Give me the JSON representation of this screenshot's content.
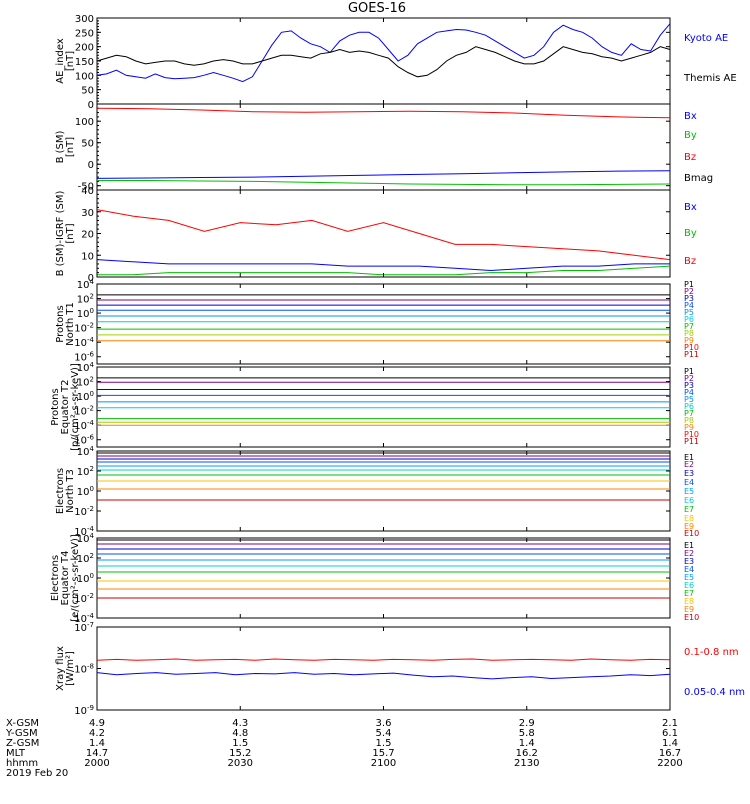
{
  "title": "GOES-16",
  "chart_data": [
    {
      "type": "line",
      "ylabel": "AE_index\n[nT]",
      "ylim": [
        0,
        300
      ],
      "yticks": [
        "0",
        "50",
        "100",
        "150",
        "200",
        "250",
        "300"
      ],
      "log": false,
      "series": [
        {
          "name": "Kyoto AE",
          "color": "#0000ff",
          "y": [
            100,
            105,
            118,
            100,
            95,
            90,
            105,
            92,
            88,
            90,
            92,
            100,
            110,
            100,
            90,
            78,
            95,
            150,
            205,
            250,
            255,
            230,
            210,
            200,
            180,
            220,
            240,
            250,
            250,
            230,
            190,
            150,
            170,
            210,
            230,
            250,
            255,
            260,
            258,
            250,
            240,
            220,
            200,
            180,
            160,
            170,
            200,
            250,
            275,
            260,
            250,
            230,
            200,
            180,
            170,
            210,
            190,
            185,
            240,
            280
          ]
        },
        {
          "name": "Themis AE",
          "color": "#000000",
          "y": [
            150,
            160,
            170,
            165,
            150,
            140,
            145,
            150,
            150,
            140,
            135,
            140,
            150,
            155,
            150,
            140,
            140,
            150,
            160,
            170,
            170,
            165,
            160,
            175,
            180,
            190,
            180,
            185,
            180,
            170,
            160,
            130,
            110,
            95,
            100,
            120,
            150,
            170,
            180,
            200,
            190,
            180,
            165,
            150,
            140,
            140,
            150,
            175,
            200,
            190,
            180,
            175,
            165,
            160,
            150,
            160,
            170,
            180,
            200,
            190
          ]
        }
      ]
    },
    {
      "type": "line",
      "ylabel": "B (SM)\n[nT]",
      "ylim": [
        -60,
        140
      ],
      "yticks": [
        "-50",
        "0",
        "50",
        "100"
      ],
      "log": false,
      "series": [
        {
          "name": "Bx",
          "color": "#0000ff",
          "y": [
            -33,
            -32,
            -31,
            -30,
            -28,
            -26,
            -24,
            -22,
            -20,
            -18,
            -16,
            -15
          ]
        },
        {
          "name": "By",
          "color": "#00c000",
          "y": [
            -38,
            -38,
            -39,
            -40,
            -42,
            -44,
            -46,
            -47,
            -48,
            -48,
            -47,
            -46
          ]
        },
        {
          "name": "Bz",
          "color": "#ff0000",
          "y": [
            130,
            129,
            126,
            122,
            121,
            122,
            123,
            122,
            119,
            114,
            110,
            108
          ]
        },
        {
          "name": "Bmag",
          "color": "#000000",
          "y": []
        }
      ]
    },
    {
      "type": "line",
      "ylabel": "B (SM)-IGRF (SM)\n[nT]",
      "ylim": [
        0,
        40
      ],
      "yticks": [
        "0",
        "10",
        "20",
        "30",
        "40"
      ],
      "log": false,
      "series": [
        {
          "name": "Bx",
          "color": "#0000ff",
          "y": [
            8,
            7,
            6,
            6,
            6,
            6,
            6,
            5,
            5,
            5,
            4,
            3,
            4,
            5,
            5,
            6,
            6
          ]
        },
        {
          "name": "By",
          "color": "#00c000",
          "y": [
            1,
            1,
            2,
            2,
            2,
            2,
            2,
            2,
            1,
            1,
            1,
            2,
            2,
            3,
            3,
            4,
            5
          ]
        },
        {
          "name": "Bz",
          "color": "#ff0000",
          "y": [
            31,
            28,
            26,
            21,
            25,
            24,
            26,
            21,
            25,
            20,
            15,
            15,
            14,
            13,
            12,
            10,
            8
          ]
        }
      ]
    },
    {
      "type": "line",
      "ylabel": "Protons\nNorth T1",
      "ylim": [
        -7,
        4
      ],
      "yticks": [
        "10^4",
        "10^2",
        "10^0",
        "10^-2",
        "10^-4",
        "10^-6"
      ],
      "log": true,
      "series": [
        {
          "name": "P1",
          "color": "#000000",
          "y": [
            2.5
          ]
        },
        {
          "name": "P2",
          "color": "#800080",
          "y": [
            1.8
          ]
        },
        {
          "name": "P3",
          "color": "#0000cc",
          "y": [
            1.1
          ]
        },
        {
          "name": "P4",
          "color": "#0050ff",
          "y": [
            0.4
          ]
        },
        {
          "name": "P5",
          "color": "#0090ff",
          "y": [
            -0.4
          ]
        },
        {
          "name": "P6",
          "color": "#00d0d0",
          "y": [
            -1.2
          ]
        },
        {
          "name": "P7",
          "color": "#00c000",
          "y": [
            -2.2
          ]
        },
        {
          "name": "P8",
          "color": "#a0d000",
          "y": [
            -3.0
          ]
        },
        {
          "name": "P9",
          "color": "#ff8000",
          "y": [
            -3.8
          ]
        },
        {
          "name": "P10",
          "color": "#ff0000",
          "y": []
        },
        {
          "name": "P11",
          "color": "#cc0000",
          "y": []
        }
      ]
    },
    {
      "type": "line",
      "ylabel": "Protons\nEquator T2\n[p/(cm²-s-sr-keV)]",
      "ylim": [
        -7,
        4
      ],
      "yticks": [
        "10^4",
        "10^2",
        "10^0",
        "10^-2",
        "10^-4",
        "10^-6"
      ],
      "log": true,
      "series": [
        {
          "name": "P1",
          "color": "#000000",
          "y": [
            2.5
          ]
        },
        {
          "name": "P2",
          "color": "#800080",
          "y": [
            1.9
          ]
        },
        {
          "name": "P3",
          "color": "#0000cc",
          "y": [
            0.9
          ]
        },
        {
          "name": "P4",
          "color": "#0050ff",
          "y": [
            0.1
          ]
        },
        {
          "name": "P5",
          "color": "#0090ff",
          "y": [
            -0.8
          ]
        },
        {
          "name": "P6",
          "color": "#00d0d0",
          "y": [
            -1.6
          ]
        },
        {
          "name": "P7",
          "color": "#00c000",
          "y": [
            -3.1
          ]
        },
        {
          "name": "P8",
          "color": "#a0d000",
          "y": [
            -3.6
          ]
        },
        {
          "name": "P9",
          "color": "#ff8000",
          "y": [
            -4.0
          ]
        },
        {
          "name": "P10",
          "color": "#ff0000",
          "y": []
        },
        {
          "name": "P11",
          "color": "#cc0000",
          "y": []
        }
      ]
    },
    {
      "type": "line",
      "ylabel": "Electrons\nNorth T3",
      "ylim": [
        -4,
        4
      ],
      "yticks": [
        "10^4",
        "10^2",
        "10^0",
        "10^-2",
        "10^-4"
      ],
      "log": true,
      "series": [
        {
          "name": "E1",
          "color": "#000000",
          "y": [
            3.8
          ]
        },
        {
          "name": "E2",
          "color": "#800080",
          "y": [
            3.5
          ]
        },
        {
          "name": "E3",
          "color": "#0000cc",
          "y": [
            3.2
          ]
        },
        {
          "name": "E4",
          "color": "#0050ff",
          "y": [
            2.9
          ]
        },
        {
          "name": "E5",
          "color": "#00a0ff",
          "y": [
            2.5
          ]
        },
        {
          "name": "E6",
          "color": "#00d0d0",
          "y": [
            2.1
          ]
        },
        {
          "name": "E7",
          "color": "#00c000",
          "y": [
            1.6
          ]
        },
        {
          "name": "E8",
          "color": "#ffc000",
          "y": [
            1.0
          ]
        },
        {
          "name": "E9",
          "color": "#ff8000",
          "y": [
            0.2
          ]
        },
        {
          "name": "E10",
          "color": "#cc0000",
          "y": [
            -0.9
          ]
        }
      ]
    },
    {
      "type": "line",
      "ylabel": "Electrons\nEquator T4\n[e/(cm²-s-sr-keV)]",
      "ylim": [
        -4,
        4
      ],
      "yticks": [
        "10^4",
        "10^2",
        "10^0",
        "10^-2",
        "10^-4"
      ],
      "log": true,
      "series": [
        {
          "name": "E1",
          "color": "#000000",
          "y": [
            3.8
          ]
        },
        {
          "name": "E2",
          "color": "#800080",
          "y": [
            3.4
          ]
        },
        {
          "name": "E3",
          "color": "#0000cc",
          "y": [
            2.9
          ]
        },
        {
          "name": "E4",
          "color": "#0050ff",
          "y": [
            2.4
          ]
        },
        {
          "name": "E5",
          "color": "#00a0ff",
          "y": [
            1.8
          ]
        },
        {
          "name": "E6",
          "color": "#00d0d0",
          "y": [
            1.2
          ]
        },
        {
          "name": "E7",
          "color": "#00c000",
          "y": [
            0.6
          ]
        },
        {
          "name": "E8",
          "color": "#ffc000",
          "y": [
            -0.3
          ]
        },
        {
          "name": "E9",
          "color": "#ff8000",
          "y": [
            -1.1
          ]
        },
        {
          "name": "E10",
          "color": "#cc0000",
          "y": [
            -2.0
          ]
        }
      ]
    },
    {
      "type": "line",
      "ylabel": "Xray flux\n[W/m²]",
      "ylim": [
        -9,
        -7
      ],
      "yticks": [
        "10^-7",
        "10^-8",
        "10^-9"
      ],
      "log": true,
      "series": [
        {
          "name": "0.1-0.8 nm",
          "color": "#ff0000",
          "y": [
            -7.8,
            -7.78,
            -7.8,
            -7.79,
            -7.77,
            -7.8,
            -7.79,
            -7.78,
            -7.8,
            -7.77,
            -7.79,
            -7.8,
            -7.78,
            -7.79,
            -7.8,
            -7.78,
            -7.79,
            -7.8,
            -7.78,
            -7.77,
            -7.8,
            -7.79,
            -7.78,
            -7.79,
            -7.8,
            -7.77,
            -7.79,
            -7.8,
            -7.78,
            -7.79
          ]
        },
        {
          "name": "0.05-0.4 nm",
          "color": "#0000ff",
          "y": [
            -8.1,
            -8.15,
            -8.12,
            -8.1,
            -8.14,
            -8.12,
            -8.1,
            -8.15,
            -8.12,
            -8.13,
            -8.1,
            -8.14,
            -8.12,
            -8.15,
            -8.13,
            -8.11,
            -8.16,
            -8.2,
            -8.18,
            -8.22,
            -8.25,
            -8.22,
            -8.2,
            -8.24,
            -8.22,
            -8.2,
            -8.18,
            -8.15,
            -8.17,
            -8.14
          ]
        }
      ]
    }
  ],
  "xaxis": {
    "rows": [
      {
        "label": "X-GSM",
        "values": [
          "4.9",
          "4.3",
          "3.6",
          "2.9",
          "2.1"
        ]
      },
      {
        "label": "Y-GSM",
        "values": [
          "4.2",
          "4.8",
          "5.4",
          "5.8",
          "6.1"
        ]
      },
      {
        "label": "Z-GSM",
        "values": [
          "1.4",
          "1.5",
          "1.5",
          "1.4",
          "1.4"
        ]
      },
      {
        "label": "MLT",
        "values": [
          "14.7",
          "15.2",
          "15.7",
          "16.2",
          "16.7"
        ]
      },
      {
        "label": "hhmm",
        "values": [
          "2000",
          "2030",
          "2100",
          "2130",
          "2200"
        ]
      }
    ],
    "date": "2019 Feb 20"
  }
}
